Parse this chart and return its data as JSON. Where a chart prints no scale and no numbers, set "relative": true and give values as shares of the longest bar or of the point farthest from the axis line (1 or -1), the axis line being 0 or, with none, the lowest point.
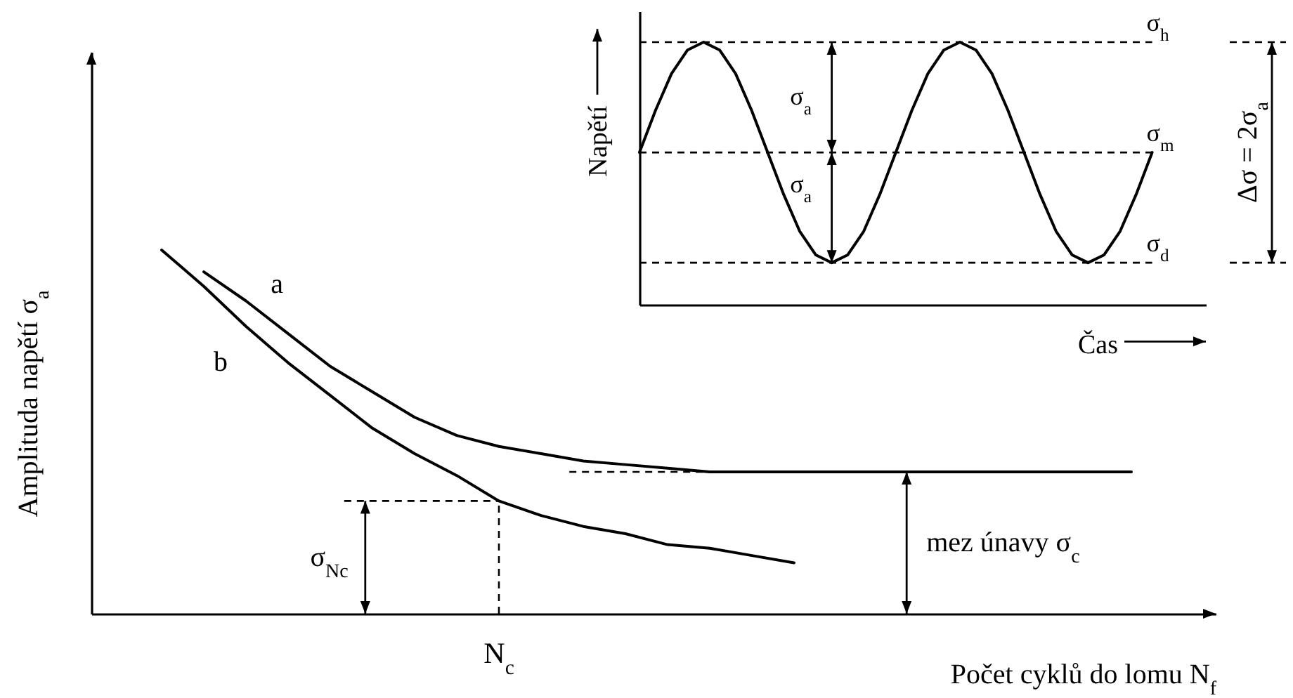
{
  "chart_data": [
    {
      "type": "line",
      "relative": true,
      "xlabel": "Počet cyklů do lomu N$_{f}$",
      "ylabel": "Amplituda napětí σ$_{a}$",
      "categories": [
        null,
        null,
        null,
        null,
        null,
        null,
        null,
        null,
        null,
        null,
        null,
        null,
        null,
        null,
        null,
        null,
        null,
        null,
        null,
        null,
        null,
        null,
        null,
        null
      ],
      "series": [
        {
          "name": "a",
          "color": "#000000",
          "values": [
            null,
            0.94,
            0.86,
            0.77,
            0.68,
            0.61,
            0.54,
            0.49,
            0.46,
            0.44,
            0.42,
            0.41,
            0.4,
            0.39,
            0.39,
            0.39,
            0.39,
            0.39,
            0.39,
            0.39,
            0.39,
            0.39,
            0.39,
            0.39
          ]
        },
        {
          "name": "b",
          "color": "#000000",
          "values": [
            1,
            0.9,
            0.79,
            0.69,
            0.6,
            0.51,
            0.44,
            0.38,
            0.31,
            0.27,
            0.24,
            0.22,
            0.19,
            0.18,
            0.16,
            0.14,
            null,
            null,
            null,
            null,
            null,
            null,
            null,
            null
          ]
        }
      ],
      "ref_lines": [
        {
          "axis": "y",
          "value": 0.31,
          "label": "σ$_{N}$$_{c}$",
          "line_style": "dashed"
        },
        {
          "axis": "y",
          "value": 0.39,
          "label": "mez únavy σ$_{c}$",
          "line_style": "dashed"
        }
      ],
      "annotations": [
        "N$_{c}$"
      ]
    },
    {
      "type": "line",
      "relative": true,
      "xlabel": "Čas",
      "ylabel": "Napětí",
      "categories": [
        null,
        null,
        null,
        null,
        null,
        null,
        null,
        null,
        null,
        null,
        null,
        null,
        null,
        null,
        null,
        null,
        null,
        null,
        null,
        null,
        null,
        null,
        null,
        null,
        null,
        null,
        null,
        null,
        null,
        null,
        null,
        null,
        null
      ],
      "series": [
        {
          "color": "#000000",
          "values": [
            0.58,
            0.74,
            0.88,
            0.97,
            1,
            0.97,
            0.88,
            0.74,
            0.58,
            0.42,
            0.28,
            0.19,
            0.16,
            0.19,
            0.28,
            0.42,
            0.58,
            0.74,
            0.88,
            0.97,
            1,
            0.97,
            0.88,
            0.74,
            0.58,
            0.42,
            0.28,
            0.19,
            0.16,
            0.19,
            0.28,
            0.42,
            0.58
          ]
        }
      ],
      "ref_lines": [
        {
          "axis": "y",
          "value": 1,
          "label": "σ$_{h}$",
          "line_style": "dashed"
        },
        {
          "axis": "y",
          "value": 0.58,
          "label": "σ$_{m}$",
          "line_style": "dashed"
        },
        {
          "axis": "y",
          "value": 0.16,
          "label": "σ$_{d}$",
          "line_style": "dashed"
        }
      ],
      "annotations": [
        "σ$_{a}$",
        "σ$_{a}$",
        "Δσ = 2σ$_{a}$"
      ]
    }
  ]
}
